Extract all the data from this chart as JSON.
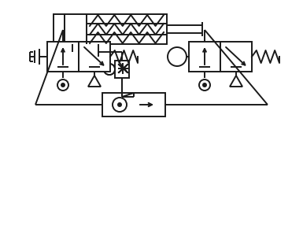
{
  "bg_color": "#ffffff",
  "line_color": "#1a1a1a",
  "line_width": 1.4,
  "fig_width": 3.85,
  "fig_height": 2.96,
  "dpi": 100
}
